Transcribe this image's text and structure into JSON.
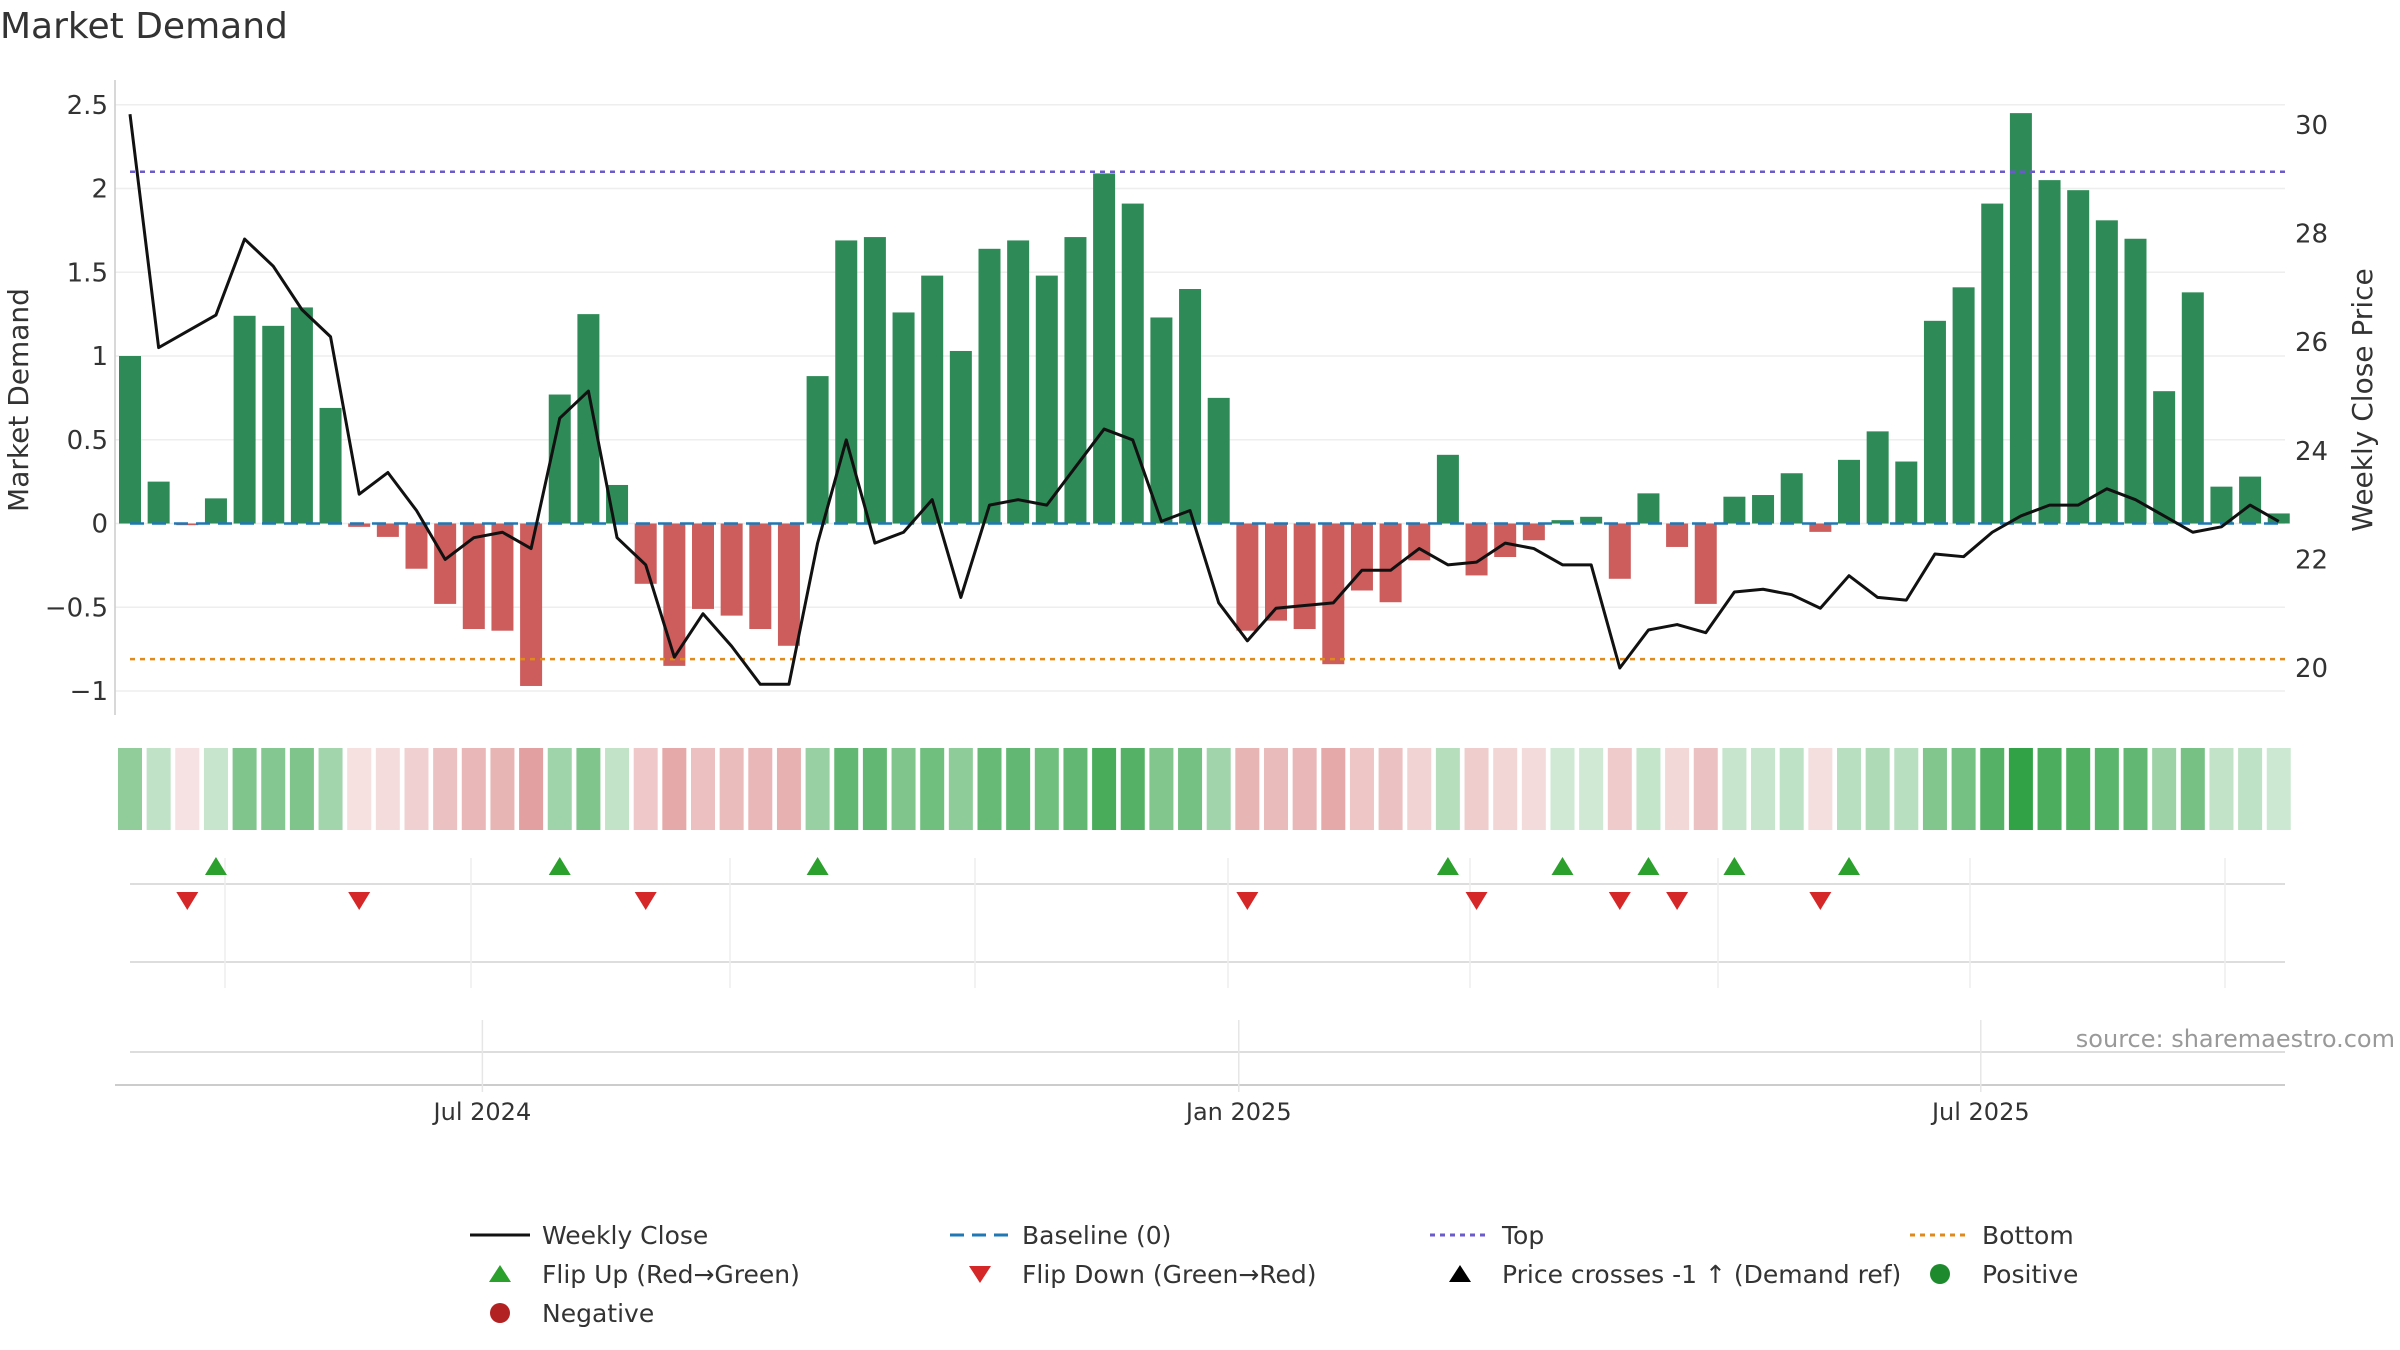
{
  "chart_data": {
    "type": "bar",
    "title": "Market Demand",
    "ylabel": "Market Demand",
    "ylabel_right": "Weekly Close Price",
    "ylim": [
      -1.1,
      2.6
    ],
    "ylim_right": [
      19.5,
      30.5
    ],
    "yticks": [
      2.5,
      2,
      1.5,
      1,
      0.5,
      0,
      -0.5,
      -1
    ],
    "ytick_labels": [
      "2.5",
      "2",
      "1.5",
      "1",
      "0.5",
      "0",
      "−0.5",
      "−1"
    ],
    "yticks_right": [
      30,
      28,
      26,
      24,
      22,
      20
    ],
    "ytick_labels_right": [
      "30",
      "28",
      "26",
      "24",
      "22",
      "20"
    ],
    "xtick_labels": [
      {
        "week": 12.3,
        "label": "Jul 2024"
      },
      {
        "week": 38.7,
        "label": "Jan 2025"
      },
      {
        "week": 64.6,
        "label": "Jul 2025"
      }
    ],
    "top_ref": 2.1,
    "bottom_ref": -0.81,
    "demand": [
      1.0,
      0.25,
      -0.01,
      0.15,
      1.24,
      1.18,
      1.29,
      0.69,
      -0.02,
      -0.08,
      -0.27,
      -0.48,
      -0.63,
      -0.64,
      -0.97,
      0.77,
      1.25,
      0.23,
      -0.36,
      -0.85,
      -0.51,
      -0.55,
      -0.63,
      -0.73,
      0.88,
      1.69,
      1.71,
      1.26,
      1.48,
      1.03,
      1.64,
      1.69,
      1.48,
      1.71,
      2.09,
      1.91,
      1.23,
      1.4,
      0.75,
      -0.64,
      -0.58,
      -0.63,
      -0.84,
      -0.4,
      -0.47,
      -0.22,
      0.41,
      -0.31,
      -0.2,
      -0.1,
      0.02,
      0.04,
      -0.33,
      0.18,
      -0.14,
      -0.48,
      0.16,
      0.17,
      0.3,
      -0.05,
      0.38,
      0.55,
      0.37,
      1.21,
      1.41,
      1.91,
      2.45,
      2.05,
      1.99,
      1.81,
      1.7,
      0.79,
      1.38,
      0.22,
      0.28,
      0.06
    ],
    "close": [
      30.2,
      25.9,
      26.2,
      26.5,
      27.9,
      27.4,
      26.6,
      26.1,
      23.2,
      23.6,
      22.9,
      22.0,
      22.4,
      22.5,
      22.2,
      24.6,
      25.1,
      22.4,
      21.9,
      20.2,
      21.0,
      20.4,
      19.7,
      19.7,
      22.3,
      24.2,
      22.3,
      22.5,
      23.1,
      21.3,
      23.0,
      23.1,
      23.0,
      23.7,
      24.4,
      24.2,
      22.7,
      22.9,
      21.2,
      20.5,
      21.1,
      21.15,
      21.2,
      21.8,
      21.8,
      22.2,
      21.9,
      21.95,
      22.3,
      22.2,
      21.9,
      21.9,
      20.0,
      20.7,
      20.8,
      20.65,
      21.4,
      21.45,
      21.35,
      21.1,
      21.7,
      21.3,
      21.25,
      22.1,
      22.05,
      22.5,
      22.8,
      23.0,
      23.0,
      23.3,
      23.1,
      22.8,
      22.5,
      22.6,
      23.0,
      22.7
    ],
    "flips_up": [
      3,
      15,
      24,
      46,
      50,
      53,
      56,
      60
    ],
    "flips_down": [
      2,
      8,
      18,
      39,
      47,
      52,
      54,
      59
    ],
    "legend": [
      {
        "label": "Weekly Close",
        "kind": "line",
        "color": "#111111"
      },
      {
        "label": "Baseline (0)",
        "kind": "dash",
        "color": "#1f77b4"
      },
      {
        "label": "Top",
        "kind": "dot",
        "color": "#6a5acd"
      },
      {
        "label": "Bottom",
        "kind": "dot",
        "color": "#e08a1e"
      },
      {
        "label": "Flip Up (Red→Green)",
        "kind": "tri-up",
        "color": "#2ca02c"
      },
      {
        "label": "Flip Down (Green→Red)",
        "kind": "tri-down",
        "color": "#d62728"
      },
      {
        "label": "Price crosses -1 ↑ (Demand ref)",
        "kind": "tri-up",
        "color": "#000000"
      },
      {
        "label": "Positive",
        "kind": "circle",
        "color": "#1e8a2e"
      },
      {
        "label": "Negative",
        "kind": "circle",
        "color": "#b22222"
      }
    ],
    "source": "source: sharemaestro.com",
    "colors": {
      "positive_bar": "#2e8b57",
      "negative_bar": "#cd5c5c",
      "close_line": "#111111",
      "baseline": "#1f77b4",
      "top": "#6a5acd",
      "bottom": "#e08a1e",
      "flip_up": "#2ca02c",
      "flip_down": "#d62728"
    }
  }
}
